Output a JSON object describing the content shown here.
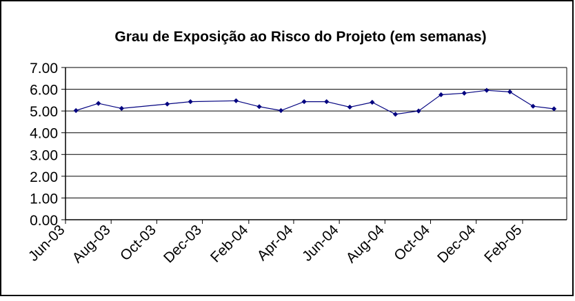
{
  "chart_data": {
    "type": "line",
    "title": "Grau de Exposição ao Risco do Projeto (em semanas)",
    "xlabel": "",
    "ylabel": "",
    "ylim": [
      0,
      7
    ],
    "yticks": [
      "0.00",
      "1.00",
      "2.00",
      "3.00",
      "4.00",
      "5.00",
      "6.00",
      "7.00"
    ],
    "xticks": [
      "Jun-03",
      "Aug-03",
      "Oct-03",
      "Dec-03",
      "Feb-04",
      "Apr-04",
      "Jun-04",
      "Aug-04",
      "Oct-04",
      "Dec-04",
      "Feb-05"
    ],
    "x_range": [
      "2003-06-01",
      "2005-04-01"
    ],
    "grid": true,
    "legend": "none",
    "series": [
      {
        "points": [
          [
            "2003-06-15",
            5.02
          ],
          [
            "2003-07-15",
            5.35
          ],
          [
            "2003-08-15",
            5.12
          ],
          [
            "2003-10-15",
            5.32
          ],
          [
            "2003-11-15",
            5.43
          ],
          [
            "2004-01-15",
            5.47
          ],
          [
            "2004-02-15",
            5.2
          ],
          [
            "2004-03-15",
            5.02
          ],
          [
            "2004-04-15",
            5.43
          ],
          [
            "2004-05-15",
            5.43
          ],
          [
            "2004-06-15",
            5.18
          ],
          [
            "2004-07-15",
            5.4
          ],
          [
            "2004-08-15",
            4.85
          ],
          [
            "2004-09-15",
            5.0
          ],
          [
            "2004-10-15",
            5.75
          ],
          [
            "2004-11-15",
            5.82
          ],
          [
            "2004-12-15",
            5.95
          ],
          [
            "2005-01-15",
            5.88
          ],
          [
            "2005-02-15",
            5.22
          ],
          [
            "2005-03-15",
            5.1
          ]
        ]
      }
    ],
    "colors": {
      "line": "#00007f",
      "marker": "#00007f",
      "grid": "#000000",
      "frame": "#000000",
      "background": "#ffffff"
    }
  }
}
